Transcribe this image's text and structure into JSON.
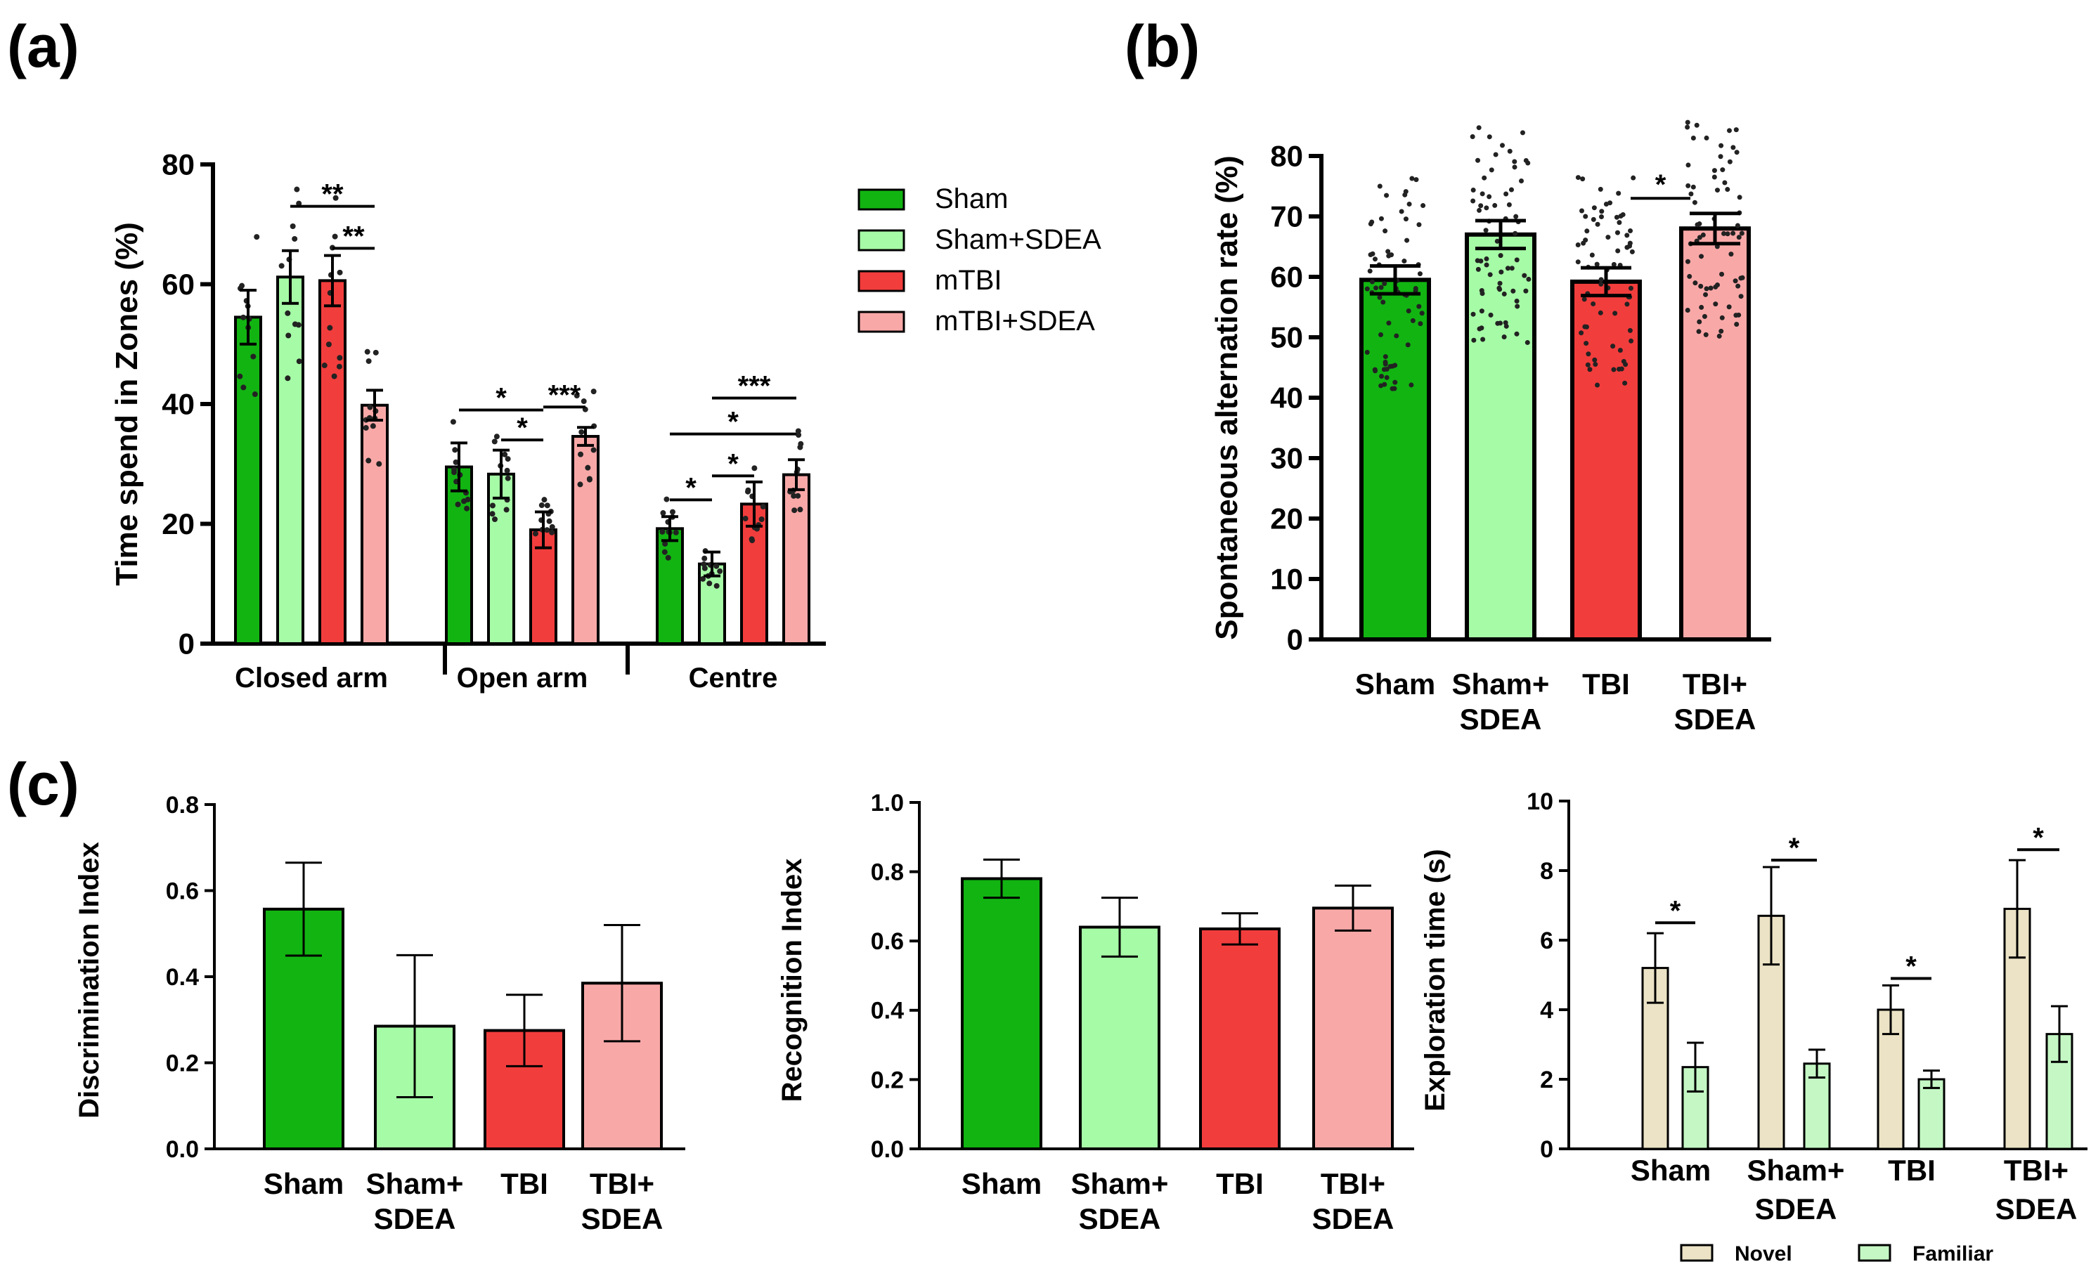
{
  "panel_labels": [
    "(a)",
    "(b)",
    "(c)"
  ],
  "colors": {
    "sham": "#12b412",
    "sham_sdea": "#a6fba6",
    "tbi": "#f23d3d",
    "tbi_sdea": "#f9a8a8",
    "novel": "#ece3c6",
    "familiar": "#c4f7c4",
    "axis": "#000000"
  },
  "chart_data": [
    {
      "id": "a",
      "type": "bar",
      "ylabel": "Time spend in Zones (%)",
      "xlabel": "",
      "ylim": [
        0,
        80
      ],
      "yticks": [
        0,
        20,
        40,
        60,
        80
      ],
      "categories": [
        "Closed arm",
        "Open arm",
        "Centre"
      ],
      "legend": [
        "Sham",
        "Sham+SDEA",
        "mTBI",
        "mTBI+SDEA"
      ],
      "series": [
        {
          "name": "Sham",
          "values": [
            54.5,
            29.5,
            19.2
          ],
          "errors": [
            4.5,
            4.0,
            2.0
          ]
        },
        {
          "name": "Sham+SDEA",
          "values": [
            61.2,
            28.3,
            13.3
          ],
          "errors": [
            4.4,
            4.0,
            2.0
          ]
        },
        {
          "name": "mTBI",
          "values": [
            60.6,
            19.0,
            23.3
          ],
          "errors": [
            4.2,
            3.0,
            3.7
          ]
        },
        {
          "name": "mTBI+SDEA",
          "values": [
            39.8,
            34.6,
            28.2
          ],
          "errors": [
            2.5,
            1.5,
            2.5
          ]
        }
      ],
      "significance": [
        {
          "group": 0,
          "from": 1,
          "to": 3,
          "y": 73,
          "label": "**"
        },
        {
          "group": 0,
          "from": 2,
          "to": 3,
          "y": 66,
          "label": "**"
        },
        {
          "group": 1,
          "from": 0,
          "to": 2,
          "y": 39,
          "label": "*"
        },
        {
          "group": 1,
          "from": 1,
          "to": 2,
          "y": 34,
          "label": "*"
        },
        {
          "group": 1,
          "from": 2,
          "to": 3,
          "y": 39.5,
          "label": "***"
        },
        {
          "group": 2,
          "from": 0,
          "to": 1,
          "y": 24,
          "label": "*"
        },
        {
          "group": 2,
          "from": 1,
          "to": 2,
          "y": 28,
          "label": "*"
        },
        {
          "group": 2,
          "from": 0,
          "to": 3,
          "y": 35,
          "label": "*"
        },
        {
          "group": 2,
          "from": 1,
          "to": 3,
          "y": 41,
          "label": "***"
        }
      ]
    },
    {
      "id": "b",
      "type": "bar",
      "ylabel": "Spontaneous alternation rate (%)",
      "ylim": [
        0,
        80
      ],
      "yticks": [
        0,
        10,
        20,
        30,
        40,
        50,
        60,
        70,
        80
      ],
      "categories": [
        "Sham",
        "Sham+\nSDEA",
        "TBI",
        "TBI+\nSDEA"
      ],
      "values": [
        59.5,
        67.0,
        59.2,
        68.0
      ],
      "errors": [
        2.3,
        2.3,
        2.3,
        2.5
      ],
      "significance": [
        {
          "from": 2,
          "to": 3,
          "y": 73,
          "label": "*"
        }
      ]
    },
    {
      "id": "c1",
      "type": "bar",
      "ylabel": "Discrimination Index",
      "ylim": [
        0,
        0.8
      ],
      "yticks": [
        "0.0",
        "0.2",
        "0.4",
        "0.6",
        "0.8"
      ],
      "categories": [
        "Sham",
        "Sham+\nSDEA",
        "TBI",
        "TBI+\nSDEA"
      ],
      "values": [
        0.557,
        0.285,
        0.275,
        0.385
      ],
      "errors": [
        0.108,
        0.165,
        0.083,
        0.135
      ]
    },
    {
      "id": "c2",
      "type": "bar",
      "ylabel": "Recognition Index",
      "ylim": [
        0,
        1.0
      ],
      "yticks": [
        "0.0",
        "0.2",
        "0.4",
        "0.6",
        "0.8",
        "1.0"
      ],
      "categories": [
        "Sham",
        "Sham+\nSDEA",
        "TBI",
        "TBI+\nSDEA"
      ],
      "values": [
        0.78,
        0.64,
        0.635,
        0.695
      ],
      "errors": [
        0.055,
        0.085,
        0.045,
        0.065
      ]
    },
    {
      "id": "c3",
      "type": "bar",
      "ylabel": "Exploration time (s)",
      "ylim": [
        0,
        10
      ],
      "yticks": [
        0,
        2,
        4,
        6,
        8,
        10
      ],
      "categories": [
        "Sham",
        "Sham+\nSDEA",
        "TBI",
        "TBI+\nSDEA"
      ],
      "legend": [
        "Novel",
        "Familiar"
      ],
      "series": [
        {
          "name": "Novel",
          "values": [
            5.2,
            6.7,
            4.0,
            6.9
          ],
          "errors": [
            1.0,
            1.4,
            0.7,
            1.4
          ]
        },
        {
          "name": "Familiar",
          "values": [
            2.35,
            2.45,
            2.0,
            3.3
          ],
          "errors": [
            0.7,
            0.4,
            0.25,
            0.8
          ]
        }
      ],
      "significance": [
        {
          "group": 0,
          "y": 6.5,
          "label": "*"
        },
        {
          "group": 1,
          "y": 8.3,
          "label": "*"
        },
        {
          "group": 2,
          "y": 4.9,
          "label": "*"
        },
        {
          "group": 3,
          "y": 8.6,
          "label": "*"
        }
      ]
    }
  ]
}
